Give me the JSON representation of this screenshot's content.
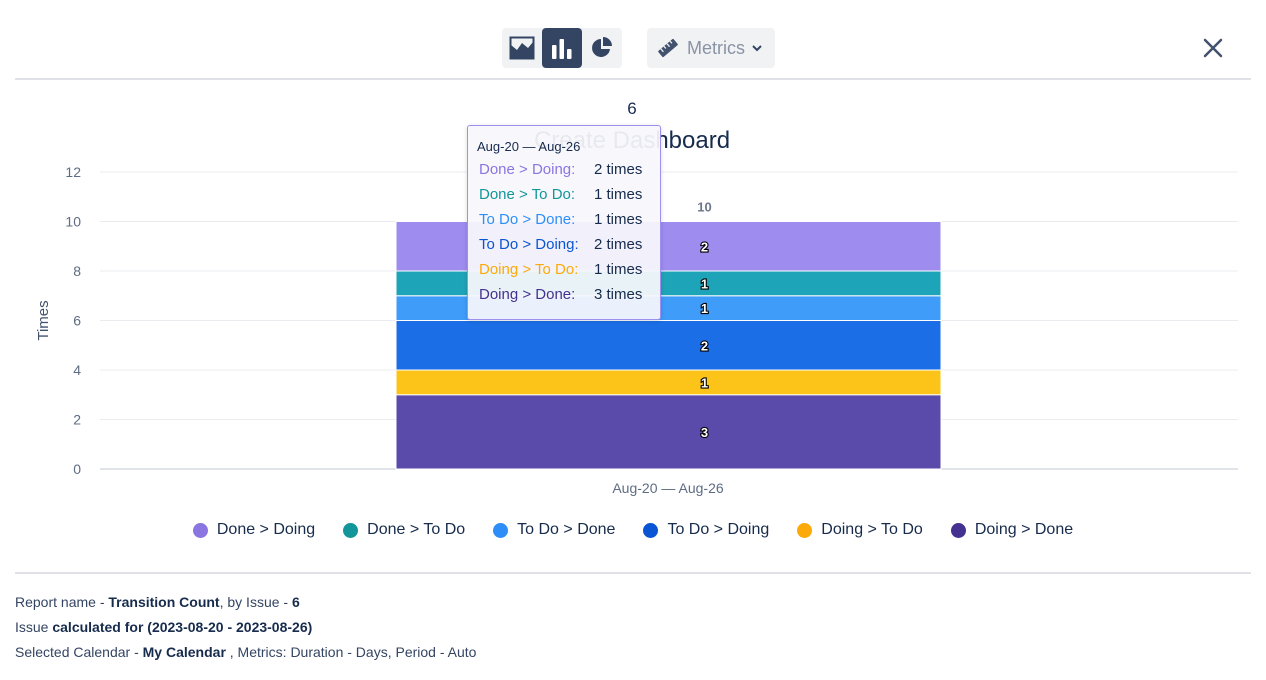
{
  "toolbar": {
    "chart_types": [
      {
        "name": "area-chart",
        "icon": "area-chart-icon",
        "active": false
      },
      {
        "name": "bar-chart",
        "icon": "bar-chart-icon",
        "active": true
      },
      {
        "name": "pie-chart",
        "icon": "pie-chart-icon",
        "active": false
      }
    ],
    "metrics_label": "Metrics",
    "metrics_icon": "ruler-icon",
    "close_icon": "close-icon"
  },
  "chart_data": {
    "type": "bar",
    "stacked": true,
    "supertitle": "6",
    "title": "Create Dashboard",
    "ylabel": "Times",
    "xlabel": "",
    "ylim": [
      0,
      12
    ],
    "yticks": [
      0,
      2,
      4,
      6,
      8,
      10,
      12
    ],
    "categories": [
      "Aug-20 — Aug-26"
    ],
    "total_label": "10",
    "series": [
      {
        "name": "Doing > Done",
        "values": [
          3
        ],
        "color": "#5a4bab"
      },
      {
        "name": "Doing > To Do",
        "values": [
          1
        ],
        "color": "#fcc419"
      },
      {
        "name": "To Do > Doing",
        "values": [
          2
        ],
        "color": "#1b6ee6"
      },
      {
        "name": "To Do > Done",
        "values": [
          1
        ],
        "color": "#3f9cf9"
      },
      {
        "name": "Done > To Do",
        "values": [
          1
        ],
        "color": "#1ea4b8"
      },
      {
        "name": "Done > Doing",
        "values": [
          2
        ],
        "color": "#9e8cef"
      }
    ],
    "legend_position": "bottom",
    "legend": [
      {
        "name": "Done > Doing",
        "color": "#8b75e0"
      },
      {
        "name": "Done > To Do",
        "color": "#12969a"
      },
      {
        "name": "To Do > Done",
        "color": "#2e8ef7"
      },
      {
        "name": "To Do > Doing",
        "color": "#0a55d4"
      },
      {
        "name": "Doing > To Do",
        "color": "#fbaa0a"
      },
      {
        "name": "Doing > Done",
        "color": "#45318f"
      }
    ],
    "grid": true
  },
  "tooltip": {
    "header": "Aug-20 — Aug-26",
    "rows": [
      {
        "label": "Done > Doing:",
        "value": "2 times",
        "color": "#8b75e0"
      },
      {
        "label": "Done > To Do:",
        "value": "1 times",
        "color": "#12969a"
      },
      {
        "label": "To Do > Done:",
        "value": "1 times",
        "color": "#2e8ef7"
      },
      {
        "label": "To Do > Doing:",
        "value": "2 times",
        "color": "#0a55d4"
      },
      {
        "label": "Doing > To Do:",
        "value": "1 times",
        "color": "#fbaa0a"
      },
      {
        "label": "Doing > Done:",
        "value": "3 times",
        "color": "#45318f"
      }
    ]
  },
  "footer": {
    "line1_prefix": "Report name - ",
    "report_name": "Transition Count",
    "line1_mid": ", by Issue - ",
    "issue_count": "6",
    "line2_prefix": "Issue ",
    "line2_bold": "calculated for (2023-08-20 - 2023-08-26)",
    "line3_prefix": "Selected Calendar - ",
    "calendar": "My Calendar",
    "line3_suffix": " , Metrics: Duration - Days, Period - Auto"
  }
}
